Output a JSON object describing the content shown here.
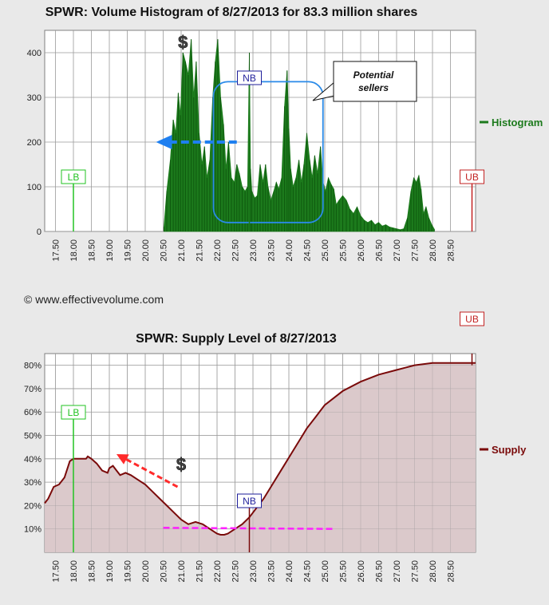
{
  "credit": "© www.effectivevolume.com",
  "colors": {
    "histogram": "#1c7a1c",
    "supply_line": "#7a0a0a",
    "supply_fill": "#d9c6c8",
    "lb": "#22c322",
    "ub": "#c22222",
    "nb": "#1e1e9a",
    "box": "#2a8ae8",
    "arrow_blue": "#1e7ff0",
    "arrow_red": "#ff2a2a",
    "magenta": "#ff22ff",
    "grid": "#9a9a9a"
  },
  "icons": {
    "dollar": "dollar-sign-icon"
  },
  "chart_data": [
    {
      "type": "bar",
      "title": "SPWR: Volume Histogram of 8/27/2013 for 83.3 million shares",
      "legend": {
        "label": "Histogram",
        "placement": "right"
      },
      "x_ticks": [
        "17.50",
        "18.00",
        "18.50",
        "19.00",
        "19.50",
        "20.00",
        "20.50",
        "21.00",
        "21.50",
        "22.00",
        "22.50",
        "23.00",
        "23.50",
        "24.00",
        "24.50",
        "25.00",
        "25.50",
        "26.00",
        "26.50",
        "27.00",
        "27.50",
        "28.00",
        "28.50"
      ],
      "xlim": [
        17.2,
        29.2
      ],
      "y_ticks": [
        "0",
        "100",
        "200",
        "300",
        "400"
      ],
      "ylim": [
        0,
        450
      ],
      "series": [
        {
          "x": [
            20.52,
            20.6,
            20.7,
            20.78,
            20.85,
            20.92,
            20.98,
            21.05,
            21.12,
            21.2,
            21.28,
            21.35,
            21.42,
            21.5,
            21.58,
            21.65,
            21.72,
            21.8,
            21.88,
            21.95,
            22.02,
            22.1,
            22.18,
            22.25,
            22.32,
            22.4,
            22.48,
            22.55,
            22.62,
            22.7,
            22.78,
            22.85,
            22.9,
            22.93,
            22.97,
            23.05,
            23.12,
            23.2,
            23.28,
            23.35,
            23.42,
            23.5,
            23.58,
            23.65,
            23.72,
            23.8,
            23.88,
            23.95,
            24.0,
            24.05,
            24.12,
            24.2,
            24.28,
            24.35,
            24.42,
            24.5,
            24.58,
            24.65,
            24.72,
            24.8,
            24.88,
            24.95,
            25.02,
            25.1,
            25.18,
            25.25,
            25.32,
            25.4,
            25.5,
            25.6,
            25.7,
            25.8,
            25.9,
            26.0,
            26.1,
            26.2,
            26.3,
            26.4,
            26.5,
            26.6,
            26.7,
            26.8,
            26.9,
            27.0,
            27.1,
            27.2,
            27.3,
            27.4,
            27.48,
            27.55,
            27.62,
            27.68,
            27.75,
            27.82,
            27.9,
            27.98,
            28.05
          ],
          "values": [
            10,
            90,
            160,
            250,
            220,
            310,
            260,
            400,
            380,
            350,
            430,
            300,
            380,
            220,
            150,
            190,
            120,
            160,
            300,
            380,
            430,
            300,
            240,
            140,
            200,
            120,
            110,
            150,
            130,
            100,
            90,
            100,
            400,
            140,
            90,
            75,
            80,
            150,
            110,
            150,
            100,
            70,
            90,
            110,
            95,
            120,
            280,
            360,
            230,
            140,
            100,
            120,
            160,
            110,
            150,
            220,
            160,
            120,
            170,
            130,
            190,
            110,
            90,
            120,
            105,
            95,
            60,
            70,
            80,
            70,
            50,
            40,
            55,
            35,
            25,
            20,
            25,
            15,
            20,
            12,
            15,
            10,
            8,
            6,
            4,
            6,
            30,
            90,
            120,
            110,
            125,
            95,
            40,
            55,
            30,
            15,
            5
          ]
        }
      ],
      "markers": [
        {
          "label": "LB",
          "x": 18.0,
          "y": 110
        },
        {
          "label": "NB",
          "x": 22.9,
          "y": 445
        },
        {
          "label": "UB",
          "x": 29.1,
          "y": 110
        }
      ],
      "annotations": [
        {
          "icon": "dollar-sign-icon",
          "x": 21.05,
          "y": 410
        },
        {
          "text": "Potential sellers",
          "type": "callout"
        },
        {
          "type": "arrow",
          "color": "blue",
          "from": [
            22.55,
            200
          ],
          "to": [
            20.3,
            200
          ]
        },
        {
          "type": "rounded-box",
          "x": [
            21.9,
            24.95
          ],
          "y": [
            20,
            335
          ]
        }
      ]
    },
    {
      "type": "area",
      "title": "SPWR: Supply Level of 8/27/2013",
      "legend": {
        "label": "Supply",
        "placement": "right"
      },
      "x_ticks": [
        "17.50",
        "18.00",
        "18.50",
        "19.00",
        "19.50",
        "20.00",
        "20.50",
        "21.00",
        "21.50",
        "22.00",
        "22.50",
        "23.00",
        "23.50",
        "24.00",
        "24.50",
        "25.00",
        "25.50",
        "26.00",
        "26.50",
        "27.00",
        "27.50",
        "28.00",
        "28.50"
      ],
      "xlim": [
        17.2,
        29.2
      ],
      "y_ticks": [
        "10%",
        "20%",
        "30%",
        "40%",
        "50%",
        "60%",
        "70%",
        "80%"
      ],
      "ylim": [
        0,
        85
      ],
      "series": [
        {
          "x": [
            17.2,
            17.3,
            17.45,
            17.6,
            17.75,
            17.9,
            18.0,
            18.2,
            18.35,
            18.4,
            18.5,
            18.65,
            18.8,
            18.95,
            19.0,
            19.1,
            19.2,
            19.3,
            19.45,
            19.6,
            19.8,
            20.0,
            20.2,
            20.4,
            20.6,
            20.8,
            21.0,
            21.2,
            21.4,
            21.6,
            21.8,
            22.0,
            22.1,
            22.2,
            22.3,
            22.5,
            22.7,
            22.9,
            23.1,
            23.3,
            23.5,
            23.7,
            23.9,
            24.1,
            24.3,
            24.5,
            24.75,
            25.0,
            25.5,
            26.0,
            26.5,
            27.0,
            27.5,
            28.0,
            28.5,
            29.0,
            29.2
          ],
          "values": [
            21,
            23,
            28,
            29,
            32,
            39,
            40,
            40,
            40,
            41,
            40,
            38,
            35,
            34,
            36,
            37,
            35,
            33,
            34,
            33,
            31,
            29,
            26,
            23,
            20,
            17,
            14,
            12,
            13,
            12,
            10,
            8,
            7.5,
            7.5,
            8,
            10,
            12,
            15,
            19,
            23,
            28,
            33,
            38,
            43,
            48,
            53,
            58,
            63,
            69,
            73,
            76,
            78,
            80,
            81,
            81,
            81,
            81
          ]
        }
      ],
      "markers": [
        {
          "label": "LB",
          "x": 18.0,
          "y": 60
        },
        {
          "label": "NB",
          "x": 22.9,
          "y": 12
        },
        {
          "label": "UB",
          "x": 29.1,
          "y": 80
        }
      ],
      "annotations": [
        {
          "icon": "dollar-sign-icon",
          "x": 21.0,
          "y": 35
        },
        {
          "type": "arrow",
          "color": "red",
          "from": [
            20.9,
            28
          ],
          "to": [
            19.2,
            42
          ]
        },
        {
          "type": "dashed-line",
          "color": "magenta",
          "from": [
            20.5,
            10.5
          ],
          "to": [
            25.3,
            10
          ]
        }
      ]
    }
  ]
}
